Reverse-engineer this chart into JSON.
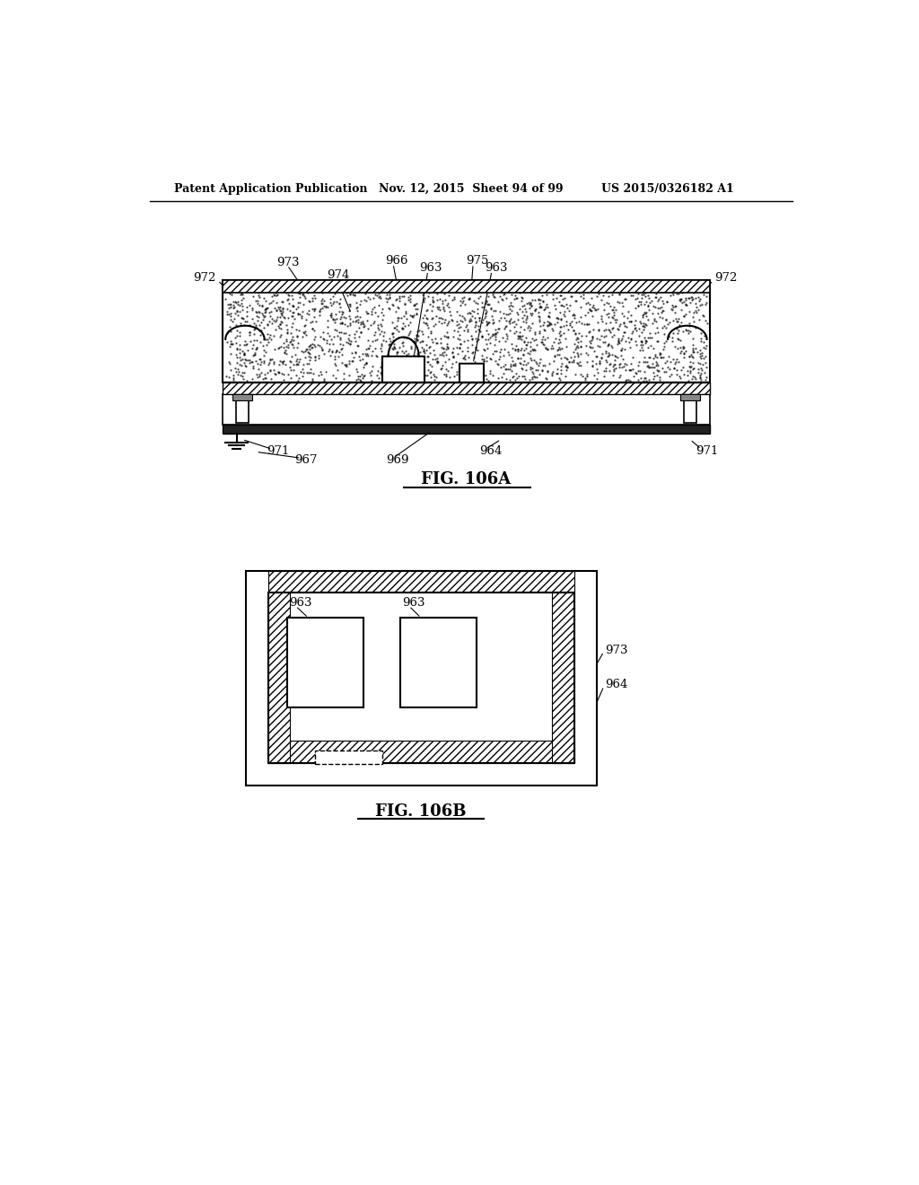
{
  "header_left": "Patent Application Publication",
  "header_mid": "Nov. 12, 2015  Sheet 94 of 99",
  "header_right": "US 2015/0326182 A1",
  "fig_a_label": "FIG. 106A",
  "fig_b_label": "FIG. 106B",
  "background_color": "#ffffff"
}
